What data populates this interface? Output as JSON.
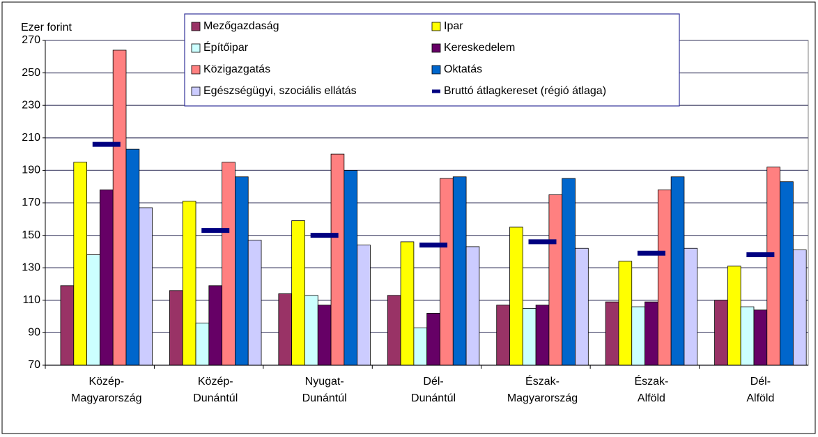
{
  "chart_data": {
    "type": "bar",
    "y_label": "Ezer forint",
    "categories": [
      "Közép-Magyarország",
      "Közép-Dunántúl",
      "Nyugat-Dunántúl",
      "Dél-Dunántúl",
      "Észak-Magyarország",
      "Észak-Alföld",
      "Dél-Alföld"
    ],
    "series": [
      {
        "name": "Mezőgazdaság",
        "color": "#993366",
        "values": [
          119,
          116,
          114,
          113,
          107,
          109,
          110
        ]
      },
      {
        "name": "Ipar",
        "color": "#ffff00",
        "values": [
          195,
          171,
          159,
          146,
          155,
          134,
          131
        ]
      },
      {
        "name": "Építőipar",
        "color": "#ccffff",
        "values": [
          138,
          96,
          113,
          93,
          105,
          106,
          106
        ]
      },
      {
        "name": "Kereskedelem",
        "color": "#660066",
        "values": [
          178,
          119,
          107,
          102,
          107,
          109,
          104
        ]
      },
      {
        "name": "Közigazgatás",
        "color": "#ff8080",
        "values": [
          264,
          195,
          200,
          185,
          175,
          178,
          192
        ]
      },
      {
        "name": "Oktatás",
        "color": "#0066cc",
        "values": [
          203,
          186,
          190,
          186,
          185,
          186,
          183
        ]
      },
      {
        "name": "Egészségügyi, szociális ellátás",
        "color": "#ccccff",
        "values": [
          167,
          147,
          144,
          143,
          142,
          142,
          141
        ]
      },
      {
        "name": "Bruttó átlagkereset (régió átlaga)",
        "color": "#000080",
        "marker": "dash",
        "values": [
          206,
          153,
          150,
          144,
          146,
          139,
          138
        ]
      }
    ],
    "ylim": [
      70,
      270
    ],
    "yticks": [
      70,
      90,
      110,
      130,
      150,
      170,
      190,
      210,
      230,
      250,
      270
    ],
    "grid": true,
    "legend": "top"
  }
}
